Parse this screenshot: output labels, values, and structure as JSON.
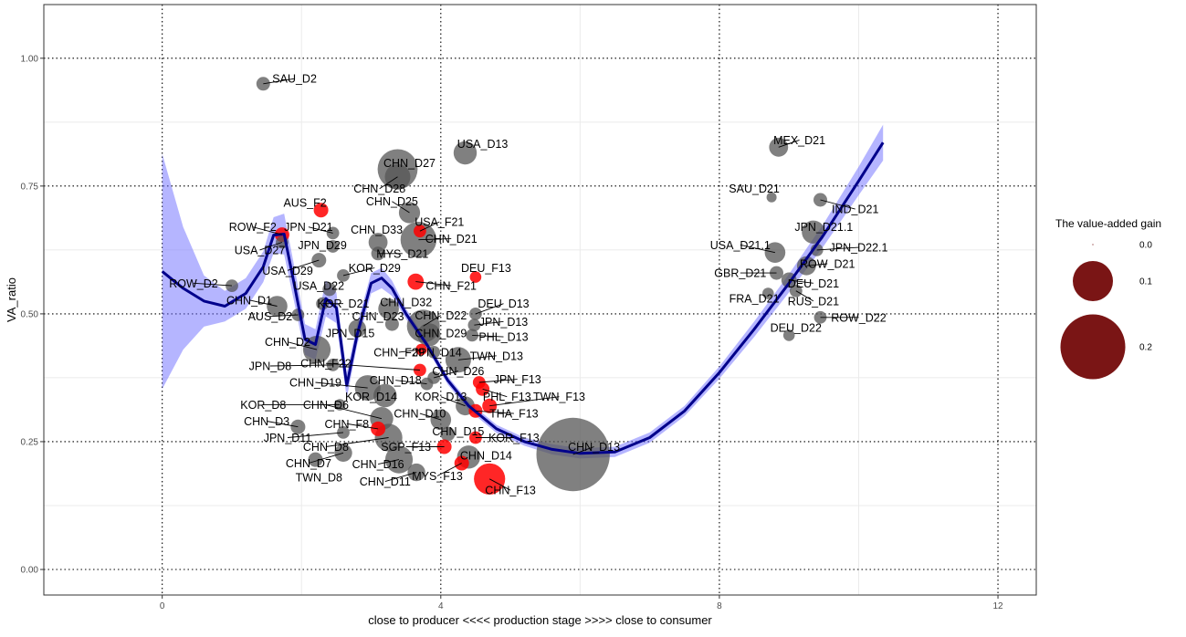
{
  "chart_data": {
    "type": "scatter",
    "xlabel": "close to producer  <<<<  production stage  >>>>  close to consumer",
    "ylabel": "VA_ratio",
    "xlim": [
      -1.7,
      12.55
    ],
    "ylim": [
      -0.05,
      1.105
    ],
    "x_ticks": [
      0,
      4,
      8,
      12
    ],
    "x_tick_labels": [
      "0",
      "4",
      "8",
      "12"
    ],
    "y_ticks": [
      0,
      0.25,
      0.5,
      0.75,
      1.0
    ],
    "y_tick_labels": [
      "0.00",
      "0.25",
      "0.50",
      "0.75",
      "1.00"
    ],
    "grid": true,
    "legend": {
      "title": "The value-added gain",
      "position": "right",
      "entries": [
        {
          "label": "0.0",
          "value": 0.0
        },
        {
          "label": "0.1",
          "value": 0.1
        },
        {
          "label": "0.2",
          "value": 0.2
        }
      ]
    },
    "colors": {
      "domestic": "#555555",
      "foreign": "#ff0000",
      "smooth_line": "#00008b",
      "confidence_band": "#6b6bff",
      "legend_fill": "#7a1515",
      "grid_dotted": "#000000",
      "grid_minor": "#ebebeb"
    },
    "points": [
      {
        "label": "SAU_D2",
        "x": 1.45,
        "y": 0.95,
        "gain": 0.005,
        "foreign": false,
        "lx": 1.9,
        "ly": 0.96
      },
      {
        "label": "USA_D13",
        "x": 4.35,
        "y": 0.815,
        "gain": 0.02,
        "foreign": false,
        "lx": 4.6,
        "ly": 0.833
      },
      {
        "label": "MEX_D21",
        "x": 8.85,
        "y": 0.826,
        "gain": 0.012,
        "foreign": false,
        "lx": 9.15,
        "ly": 0.84
      },
      {
        "label": "CHN_D27",
        "x": 3.38,
        "y": 0.783,
        "gain": 0.07,
        "foreign": false,
        "lx": 3.55,
        "ly": 0.795
      },
      {
        "label": "CHN_D28",
        "x": 3.38,
        "y": 0.768,
        "gain": 0.025,
        "foreign": false,
        "lx": 3.12,
        "ly": 0.745
      },
      {
        "label": "SAU_D21",
        "x": 8.75,
        "y": 0.728,
        "gain": 0.002,
        "foreign": false,
        "lx": 8.5,
        "ly": 0.745
      },
      {
        "label": "AUS_F2",
        "x": 2.28,
        "y": 0.703,
        "gain": 0.006,
        "foreign": true,
        "lx": 2.05,
        "ly": 0.718
      },
      {
        "label": "CHN_D25",
        "x": 3.55,
        "y": 0.698,
        "gain": 0.016,
        "foreign": false,
        "lx": 3.3,
        "ly": 0.72
      },
      {
        "label": "IND_D21",
        "x": 9.45,
        "y": 0.723,
        "gain": 0.005,
        "foreign": false,
        "lx": 9.95,
        "ly": 0.705
      },
      {
        "label": "USA_F21",
        "x": 3.7,
        "y": 0.662,
        "gain": 0.004,
        "foreign": true,
        "lx": 3.98,
        "ly": 0.68
      },
      {
        "label": "ROW_F2",
        "x": 1.72,
        "y": 0.655,
        "gain": 0.006,
        "foreign": true,
        "lx": 1.3,
        "ly": 0.67
      },
      {
        "label": "JPN_D21",
        "x": 2.45,
        "y": 0.658,
        "gain": 0.004,
        "foreign": false,
        "lx": 2.1,
        "ly": 0.67
      },
      {
        "label": "CHN_D33",
        "x": 3.1,
        "y": 0.64,
        "gain": 0.012,
        "foreign": false,
        "lx": 3.08,
        "ly": 0.665
      },
      {
        "label": "JPN_D21.1",
        "x": 9.35,
        "y": 0.66,
        "gain": 0.02,
        "foreign": false,
        "lx": 9.5,
        "ly": 0.67
      },
      {
        "label": "CHN_D21",
        "x": 3.68,
        "y": 0.645,
        "gain": 0.055,
        "foreign": false,
        "lx": 4.15,
        "ly": 0.647
      },
      {
        "label": "JPN_D29",
        "x": 2.45,
        "y": 0.632,
        "gain": 0.004,
        "foreign": false,
        "lx": 2.3,
        "ly": 0.635
      },
      {
        "label": "USA_D21.1",
        "x": 8.8,
        "y": 0.62,
        "gain": 0.015,
        "foreign": false,
        "lx": 8.3,
        "ly": 0.635
      },
      {
        "label": "JPN_D22.1",
        "x": 9.4,
        "y": 0.625,
        "gain": 0.004,
        "foreign": false,
        "lx": 10.0,
        "ly": 0.63
      },
      {
        "label": "USA_D27",
        "x": 1.72,
        "y": 0.64,
        "gain": 0.004,
        "foreign": false,
        "lx": 1.4,
        "ly": 0.625
      },
      {
        "label": "MYS_D21",
        "x": 3.1,
        "y": 0.618,
        "gain": 0.005,
        "foreign": false,
        "lx": 3.45,
        "ly": 0.618
      },
      {
        "label": "ROW_D21",
        "x": 9.25,
        "y": 0.594,
        "gain": 0.012,
        "foreign": false,
        "lx": 9.55,
        "ly": 0.598
      },
      {
        "label": "KOR_D29",
        "x": 2.6,
        "y": 0.575,
        "gain": 0.004,
        "foreign": false,
        "lx": 3.05,
        "ly": 0.59
      },
      {
        "label": "USA_D29",
        "x": 2.25,
        "y": 0.605,
        "gain": 0.006,
        "foreign": false,
        "lx": 1.8,
        "ly": 0.585
      },
      {
        "label": "DEU_F13",
        "x": 4.5,
        "y": 0.572,
        "gain": 0.003,
        "foreign": true,
        "lx": 4.65,
        "ly": 0.59
      },
      {
        "label": "GBR_D21",
        "x": 8.82,
        "y": 0.58,
        "gain": 0.005,
        "foreign": false,
        "lx": 8.3,
        "ly": 0.58
      },
      {
        "label": "DEU_D21",
        "x": 9.0,
        "y": 0.566,
        "gain": 0.007,
        "foreign": false,
        "lx": 9.35,
        "ly": 0.56
      },
      {
        "label": "ROW_D2",
        "x": 1.0,
        "y": 0.555,
        "gain": 0.004,
        "foreign": false,
        "lx": 0.45,
        "ly": 0.56
      },
      {
        "label": "CHN_F21",
        "x": 3.64,
        "y": 0.563,
        "gain": 0.008,
        "foreign": true,
        "lx": 4.15,
        "ly": 0.555
      },
      {
        "label": "USA_D22",
        "x": 2.4,
        "y": 0.548,
        "gain": 0.005,
        "foreign": false,
        "lx": 2.25,
        "ly": 0.555
      },
      {
        "label": "FRA_D21",
        "x": 8.7,
        "y": 0.54,
        "gain": 0.003,
        "foreign": false,
        "lx": 8.5,
        "ly": 0.53
      },
      {
        "label": "RUS_D21",
        "x": 9.1,
        "y": 0.545,
        "gain": 0.004,
        "foreign": false,
        "lx": 9.35,
        "ly": 0.525
      },
      {
        "label": "CHN_D1",
        "x": 1.65,
        "y": 0.515,
        "gain": 0.015,
        "foreign": false,
        "lx": 1.25,
        "ly": 0.527
      },
      {
        "label": "KOR_D21",
        "x": 2.3,
        "y": 0.52,
        "gain": 0.004,
        "foreign": false,
        "lx": 2.6,
        "ly": 0.52
      },
      {
        "label": "CHN_D32",
        "x": 3.25,
        "y": 0.51,
        "gain": 0.015,
        "foreign": false,
        "lx": 3.5,
        "ly": 0.523
      },
      {
        "label": "DEU_D13",
        "x": 4.5,
        "y": 0.5,
        "gain": 0.004,
        "foreign": false,
        "lx": 4.9,
        "ly": 0.52
      },
      {
        "label": "AUS_D2",
        "x": 1.95,
        "y": 0.498,
        "gain": 0.004,
        "foreign": false,
        "lx": 1.55,
        "ly": 0.495
      },
      {
        "label": "ROW_D22",
        "x": 9.45,
        "y": 0.493,
        "gain": 0.004,
        "foreign": false,
        "lx": 10.0,
        "ly": 0.493
      },
      {
        "label": "CHN_D22",
        "x": 3.75,
        "y": 0.476,
        "gain": 0.045,
        "foreign": false,
        "lx": 4.0,
        "ly": 0.497
      },
      {
        "label": "CHN_D23",
        "x": 3.3,
        "y": 0.48,
        "gain": 0.005,
        "foreign": false,
        "lx": 3.1,
        "ly": 0.495
      },
      {
        "label": "JPN_D13",
        "x": 4.48,
        "y": 0.478,
        "gain": 0.004,
        "foreign": false,
        "lx": 4.9,
        "ly": 0.485
      },
      {
        "label": "DEU_D22",
        "x": 9.0,
        "y": 0.458,
        "gain": 0.003,
        "foreign": false,
        "lx": 9.1,
        "ly": 0.473
      },
      {
        "label": "CHN_D29",
        "x": 3.83,
        "y": 0.459,
        "gain": 0.02,
        "foreign": false,
        "lx": 4.0,
        "ly": 0.462
      },
      {
        "label": "JPN_D15",
        "x": 2.8,
        "y": 0.471,
        "gain": 0.01,
        "foreign": false,
        "lx": 2.7,
        "ly": 0.462
      },
      {
        "label": "PHL_D13",
        "x": 4.45,
        "y": 0.458,
        "gain": 0.004,
        "foreign": false,
        "lx": 4.9,
        "ly": 0.455
      },
      {
        "label": "CHN_D2",
        "x": 2.22,
        "y": 0.43,
        "gain": 0.03,
        "foreign": false,
        "lx": 1.8,
        "ly": 0.445
      },
      {
        "label": "CHN_F29",
        "x": 3.72,
        "y": 0.43,
        "gain": 0.003,
        "foreign": true,
        "lx": 3.4,
        "ly": 0.425
      },
      {
        "label": "JPN_D14",
        "x": 3.9,
        "y": 0.425,
        "gain": 0.004,
        "foreign": false,
        "lx": 3.95,
        "ly": 0.425
      },
      {
        "label": "TWN_D13",
        "x": 4.25,
        "y": 0.41,
        "gain": 0.025,
        "foreign": false,
        "lx": 4.8,
        "ly": 0.418
      },
      {
        "label": "JPN_D8",
        "x": 2.45,
        "y": 0.4,
        "gain": 0.004,
        "foreign": false,
        "lx": 1.55,
        "ly": 0.398
      },
      {
        "label": "CHN_F22",
        "x": 3.7,
        "y": 0.39,
        "gain": 0.004,
        "foreign": true,
        "lx": 2.35,
        "ly": 0.403
      },
      {
        "label": "CHN_D26",
        "x": 3.9,
        "y": 0.375,
        "gain": 0.004,
        "foreign": false,
        "lx": 4.25,
        "ly": 0.388
      },
      {
        "label": "JPN_F13",
        "x": 4.55,
        "y": 0.366,
        "gain": 0.004,
        "foreign": true,
        "lx": 5.1,
        "ly": 0.372
      },
      {
        "label": "CHN_D18",
        "x": 3.8,
        "y": 0.363,
        "gain": 0.004,
        "foreign": false,
        "lx": 3.35,
        "ly": 0.37
      },
      {
        "label": "CHN_D19",
        "x": 2.95,
        "y": 0.355,
        "gain": 0.025,
        "foreign": false,
        "lx": 2.2,
        "ly": 0.366
      },
      {
        "label": "PHL_F13",
        "x": 4.6,
        "y": 0.353,
        "gain": 0.005,
        "foreign": true,
        "lx": 4.95,
        "ly": 0.338
      },
      {
        "label": "TWN_F13",
        "x": 4.7,
        "y": 0.32,
        "gain": 0.006,
        "foreign": true,
        "lx": 5.7,
        "ly": 0.338
      },
      {
        "label": "KOR_D13",
        "x": 4.35,
        "y": 0.32,
        "gain": 0.012,
        "foreign": false,
        "lx": 4.0,
        "ly": 0.338
      },
      {
        "label": "KOR_D14",
        "x": 3.2,
        "y": 0.34,
        "gain": 0.02,
        "foreign": false,
        "lx": 3.0,
        "ly": 0.338
      },
      {
        "label": "KOR_D8",
        "x": 2.55,
        "y": 0.322,
        "gain": 0.003,
        "foreign": false,
        "lx": 1.45,
        "ly": 0.322
      },
      {
        "label": "CHN_D6",
        "x": 3.15,
        "y": 0.295,
        "gain": 0.02,
        "foreign": false,
        "lx": 2.35,
        "ly": 0.322
      },
      {
        "label": "THA_F13",
        "x": 4.5,
        "y": 0.31,
        "gain": 0.005,
        "foreign": true,
        "lx": 5.05,
        "ly": 0.305
      },
      {
        "label": "CHN_D10",
        "x": 4.0,
        "y": 0.293,
        "gain": 0.015,
        "foreign": false,
        "lx": 3.7,
        "ly": 0.305
      },
      {
        "label": "CHN_D3",
        "x": 1.95,
        "y": 0.279,
        "gain": 0.006,
        "foreign": false,
        "lx": 1.5,
        "ly": 0.29
      },
      {
        "label": "CHN_F8",
        "x": 3.1,
        "y": 0.275,
        "gain": 0.006,
        "foreign": true,
        "lx": 2.65,
        "ly": 0.285
      },
      {
        "label": "CHN_D15",
        "x": 4.1,
        "y": 0.265,
        "gain": 0.006,
        "foreign": false,
        "lx": 4.25,
        "ly": 0.27
      },
      {
        "label": "JPN_D11",
        "x": 2.6,
        "y": 0.268,
        "gain": 0.004,
        "foreign": false,
        "lx": 1.8,
        "ly": 0.258
      },
      {
        "label": "CHN_D8",
        "x": 3.25,
        "y": 0.258,
        "gain": 0.03,
        "foreign": false,
        "lx": 2.35,
        "ly": 0.24
      },
      {
        "label": "KOR_F13",
        "x": 4.5,
        "y": 0.258,
        "gain": 0.004,
        "foreign": true,
        "lx": 5.05,
        "ly": 0.258
      },
      {
        "label": "CHN_D13",
        "x": 5.9,
        "y": 0.225,
        "gain": 0.26,
        "foreign": false,
        "lx": 6.2,
        "ly": 0.24
      },
      {
        "label": "SGP_F13",
        "x": 4.05,
        "y": 0.24,
        "gain": 0.006,
        "foreign": true,
        "lx": 3.5,
        "ly": 0.24
      },
      {
        "label": "CHN_D14",
        "x": 4.4,
        "y": 0.22,
        "gain": 0.02,
        "foreign": false,
        "lx": 4.65,
        "ly": 0.223
      },
      {
        "label": "CHN_D7",
        "x": 2.6,
        "y": 0.228,
        "gain": 0.01,
        "foreign": false,
        "lx": 2.1,
        "ly": 0.208
      },
      {
        "label": "CHN_D16",
        "x": 3.4,
        "y": 0.215,
        "gain": 0.03,
        "foreign": false,
        "lx": 3.1,
        "ly": 0.206
      },
      {
        "label": "MYS_F13",
        "x": 4.3,
        "y": 0.208,
        "gain": 0.006,
        "foreign": true,
        "lx": 3.95,
        "ly": 0.183
      },
      {
        "label": "TWN_D8",
        "x": 2.2,
        "y": 0.215,
        "gain": 0.006,
        "foreign": false,
        "lx": 2.25,
        "ly": 0.18
      },
      {
        "label": "CHN_D11",
        "x": 3.65,
        "y": 0.19,
        "gain": 0.01,
        "foreign": false,
        "lx": 3.2,
        "ly": 0.172
      },
      {
        "label": "CHN_F13",
        "x": 4.7,
        "y": 0.177,
        "gain": 0.04,
        "foreign": true,
        "lx": 5.0,
        "ly": 0.155
      }
    ],
    "smooth_curve": {
      "x": [
        0.0,
        0.3,
        0.6,
        0.9,
        1.2,
        1.45,
        1.6,
        1.75,
        1.9,
        2.05,
        2.2,
        2.35,
        2.5,
        2.65,
        2.8,
        3.0,
        3.15,
        3.3,
        3.5,
        3.8,
        4.1,
        4.4,
        4.8,
        5.2,
        5.6,
        6.0,
        6.5,
        7.0,
        7.5,
        8.0,
        8.5,
        9.0,
        9.5,
        10.0,
        10.35
      ],
      "y": [
        0.583,
        0.55,
        0.525,
        0.515,
        0.54,
        0.592,
        0.654,
        0.656,
        0.555,
        0.45,
        0.44,
        0.53,
        0.512,
        0.36,
        0.46,
        0.56,
        0.57,
        0.55,
        0.5,
        0.44,
        0.37,
        0.32,
        0.275,
        0.25,
        0.235,
        0.227,
        0.23,
        0.258,
        0.31,
        0.385,
        0.47,
        0.56,
        0.655,
        0.76,
        0.835
      ],
      "band_halfwidth": [
        0.23,
        0.12,
        0.05,
        0.03,
        0.03,
        0.03,
        0.035,
        0.04,
        0.035,
        0.03,
        0.03,
        0.035,
        0.03,
        0.025,
        0.02,
        0.02,
        0.02,
        0.015,
        0.01,
        0.008,
        0.008,
        0.008,
        0.008,
        0.008,
        0.01,
        0.01,
        0.01,
        0.01,
        0.01,
        0.012,
        0.015,
        0.018,
        0.022,
        0.028,
        0.035
      ]
    }
  }
}
